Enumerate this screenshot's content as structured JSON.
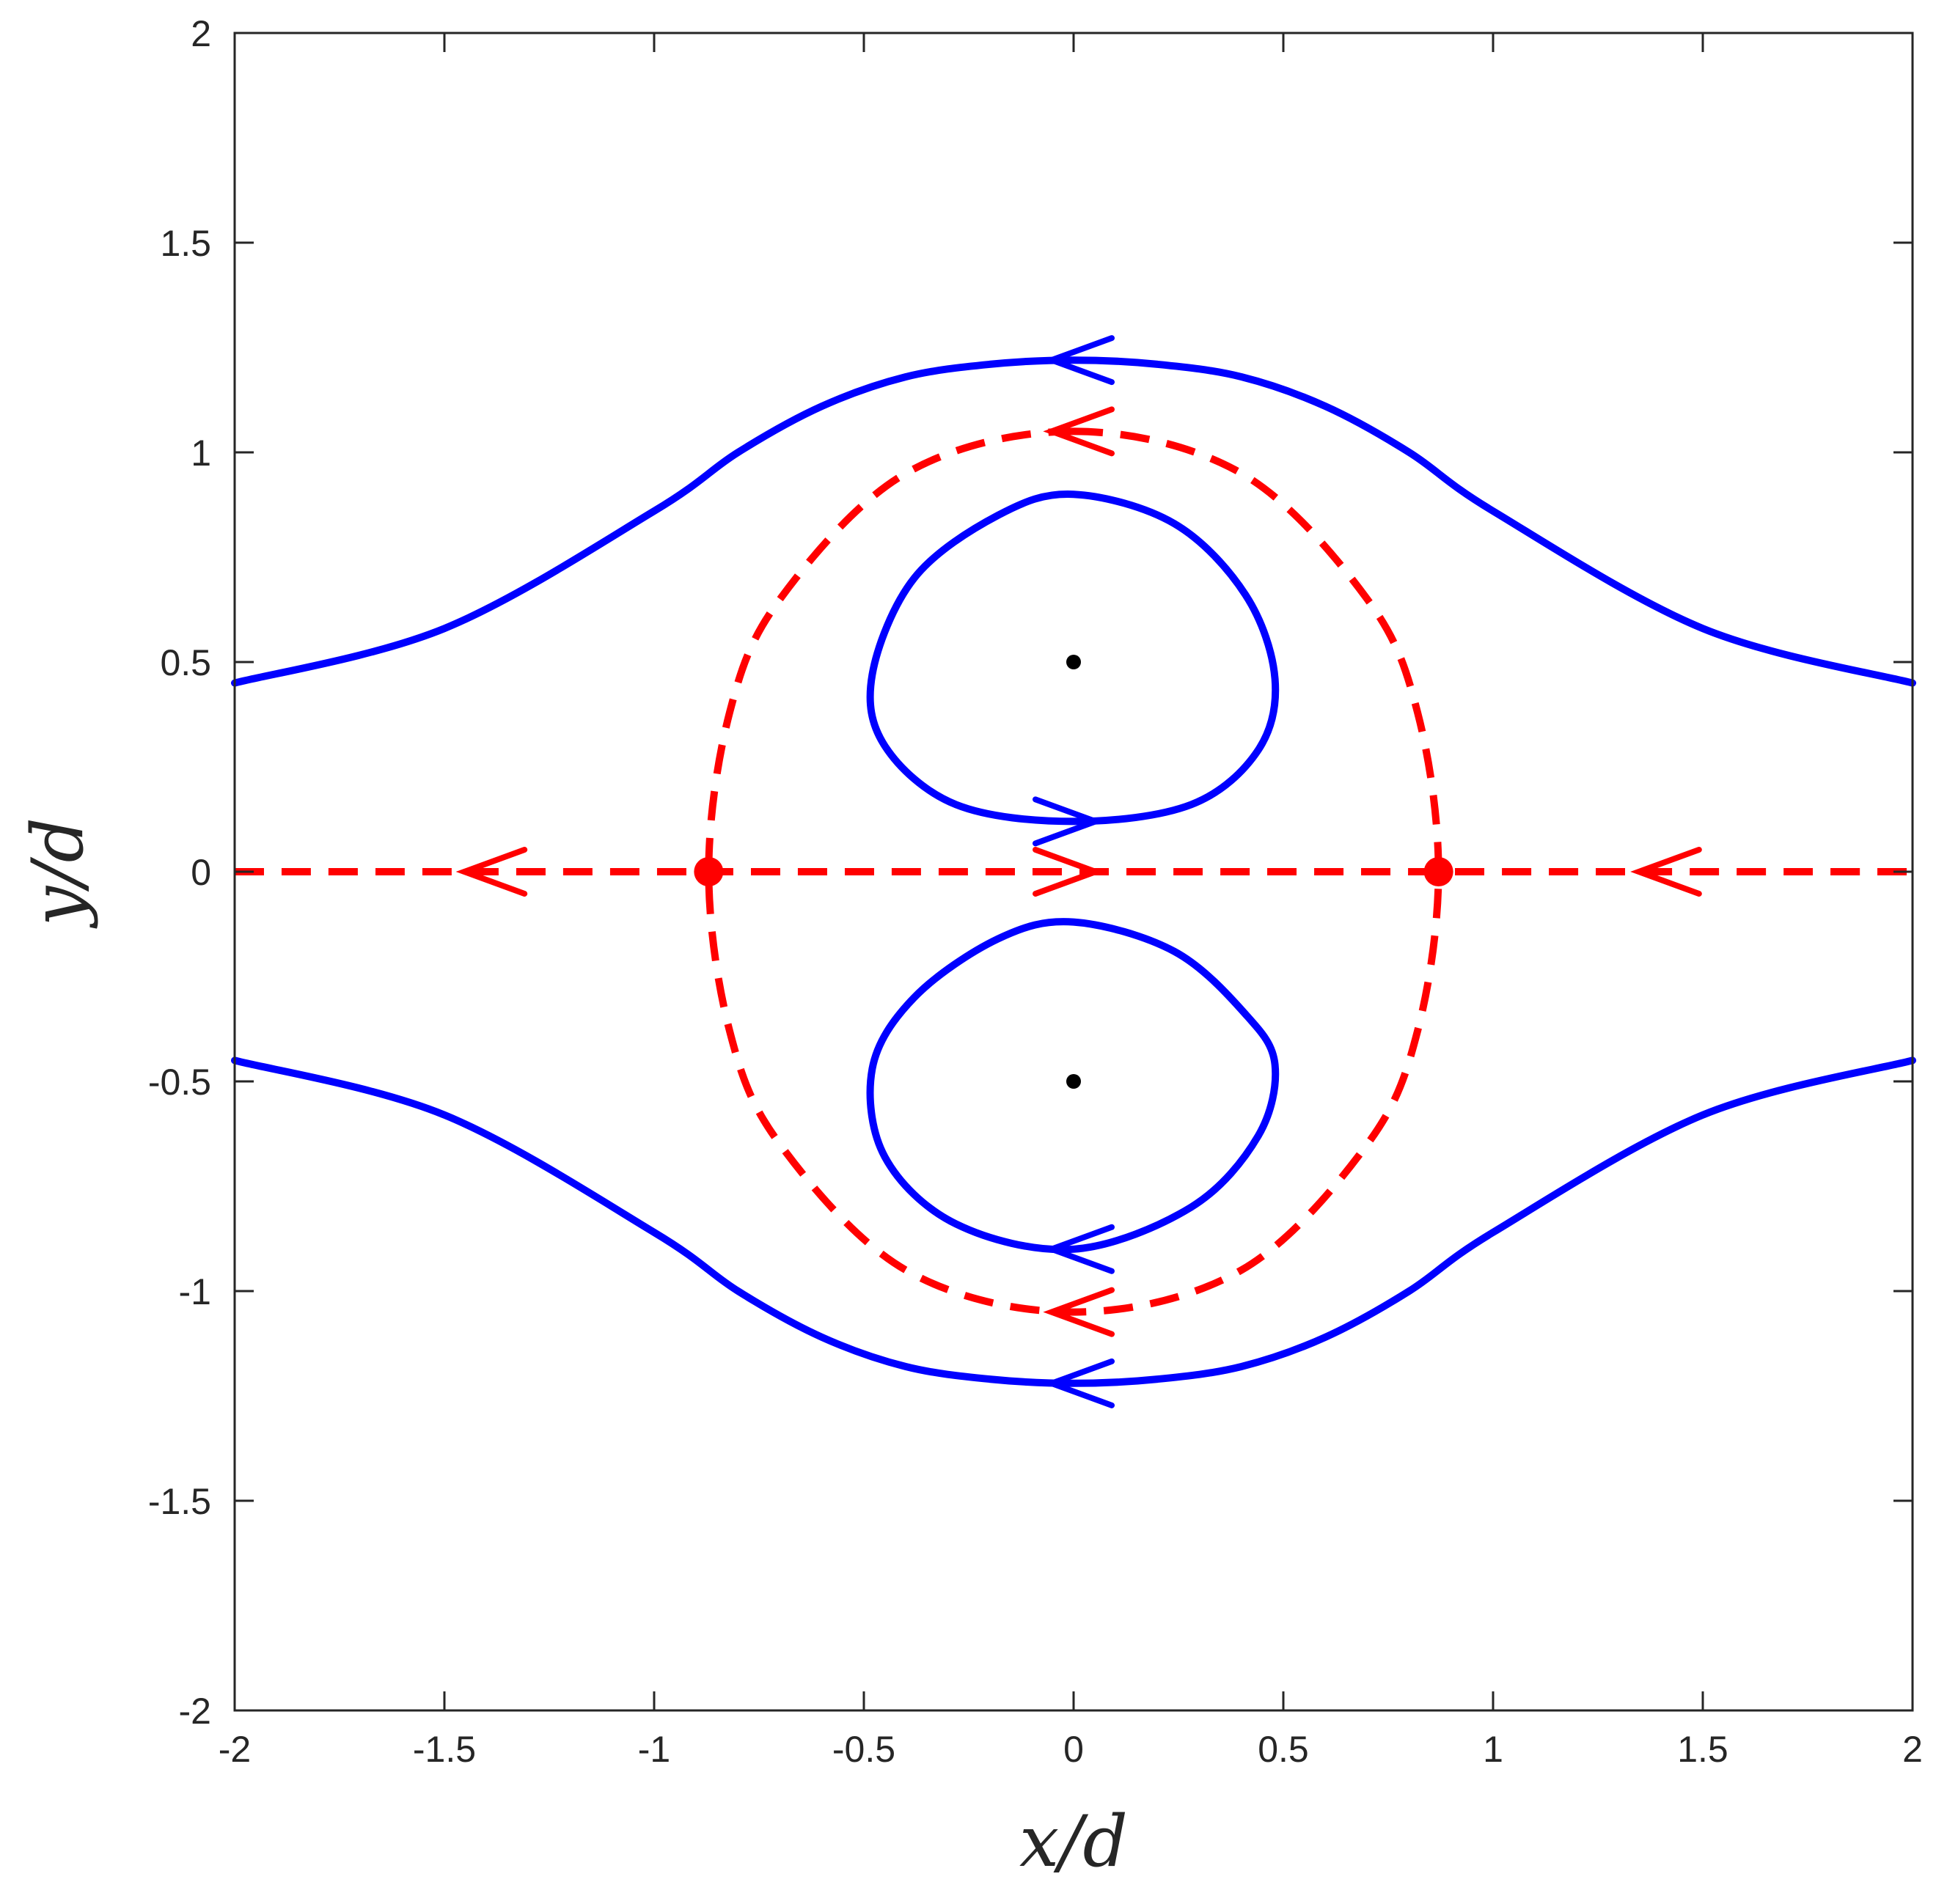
{
  "chart_data": {
    "type": "line",
    "title": "",
    "xlabel": "x/d",
    "ylabel": "y/d",
    "xlim": [
      -2,
      2
    ],
    "ylim": [
      -2,
      2
    ],
    "grid": false,
    "legend": "none",
    "x_ticks": [
      "-2",
      "-1.5",
      "-1",
      "-0.5",
      "0",
      "0.5",
      "1",
      "1.5",
      "2"
    ],
    "y_ticks": [
      "-2",
      "-1.5",
      "-1",
      "-0.5",
      "0",
      "0.5",
      "1",
      "1.5",
      "2"
    ],
    "colors": {
      "blue": "#0000ff",
      "red": "#ff0000",
      "black": "#000000",
      "axis": "#262626"
    },
    "series": [
      {
        "style": "blue-solid",
        "x": [
          -2,
          -1.5,
          -1,
          -0.8,
          -0.6,
          -0.4,
          -0.2,
          0,
          0.2,
          0.4,
          0.6,
          0.8,
          1,
          1.5,
          2
        ],
        "y": [
          0.45,
          0.58,
          0.86,
          1.0,
          1.11,
          1.18,
          1.21,
          1.22,
          1.21,
          1.18,
          1.11,
          1.0,
          0.86,
          0.58,
          0.45
        ]
      },
      {
        "style": "blue-solid",
        "x": [
          -2,
          -1.5,
          -1,
          -0.8,
          -0.6,
          -0.4,
          -0.2,
          0,
          0.2,
          0.4,
          0.6,
          0.8,
          1,
          1.5,
          2
        ],
        "y": [
          -0.45,
          -0.58,
          -0.86,
          -1.0,
          -1.11,
          -1.18,
          -1.21,
          -1.22,
          -1.21,
          -1.18,
          -1.11,
          -1.0,
          -0.86,
          -0.58,
          -0.45
        ]
      },
      {
        "style": "blue-solid",
        "closed": true,
        "x": [
          0,
          0.24,
          0.41,
          0.48,
          0.44,
          0.28,
          0,
          -0.28,
          -0.45,
          -0.48,
          -0.38,
          -0.18,
          0
        ],
        "y": [
          0.9,
          0.83,
          0.66,
          0.46,
          0.29,
          0.16,
          0.12,
          0.16,
          0.3,
          0.47,
          0.7,
          0.85,
          0.9
        ]
      },
      {
        "style": "blue-solid",
        "closed": true,
        "x": [
          0,
          0.24,
          0.41,
          0.48,
          0.44,
          0.28,
          0,
          -0.28,
          -0.45,
          -0.48,
          -0.38,
          -0.18,
          0
        ],
        "y": [
          -0.12,
          -0.19,
          -0.34,
          -0.46,
          -0.63,
          -0.8,
          -0.9,
          -0.84,
          -0.68,
          -0.47,
          -0.3,
          -0.16,
          -0.12
        ]
      },
      {
        "style": "red-dashed",
        "closed": true,
        "x": [
          0,
          0.4,
          0.7,
          0.82,
          0.87,
          0.82,
          0.7,
          0.4,
          0,
          -0.4,
          -0.7,
          -0.82,
          -0.87,
          -0.82,
          -0.7,
          -0.4,
          0
        ],
        "y": [
          1.05,
          0.95,
          0.65,
          0.38,
          0,
          -0.38,
          -0.65,
          -0.95,
          -1.05,
          -0.95,
          -0.65,
          -0.38,
          0,
          0.38,
          0.65,
          0.95,
          1.05
        ]
      },
      {
        "style": "red-dashed",
        "x": [
          -2,
          2
        ],
        "y": [
          0,
          0
        ]
      }
    ],
    "arrows": [
      {
        "style": "blue",
        "x": 0,
        "y": 1.22,
        "direction": "left"
      },
      {
        "style": "blue",
        "x": 0,
        "y": -1.22,
        "direction": "left"
      },
      {
        "style": "blue",
        "x": 0,
        "y": 0.12,
        "direction": "right"
      },
      {
        "style": "blue",
        "x": 0,
        "y": -0.9,
        "direction": "left"
      },
      {
        "style": "red",
        "x": 0,
        "y": 1.05,
        "direction": "left"
      },
      {
        "style": "red",
        "x": 0,
        "y": -1.05,
        "direction": "left"
      },
      {
        "style": "red",
        "x": -1.4,
        "y": 0,
        "direction": "left"
      },
      {
        "style": "red",
        "x": 0,
        "y": 0,
        "direction": "right"
      },
      {
        "style": "red",
        "x": 1.4,
        "y": 0,
        "direction": "left"
      }
    ],
    "points": [
      {
        "style": "black-small",
        "x": 0,
        "y": 0.5
      },
      {
        "style": "black-small",
        "x": 0,
        "y": -0.5
      },
      {
        "style": "red-large",
        "x": -0.87,
        "y": 0
      },
      {
        "style": "red-large",
        "x": 0.87,
        "y": 0
      }
    ]
  }
}
